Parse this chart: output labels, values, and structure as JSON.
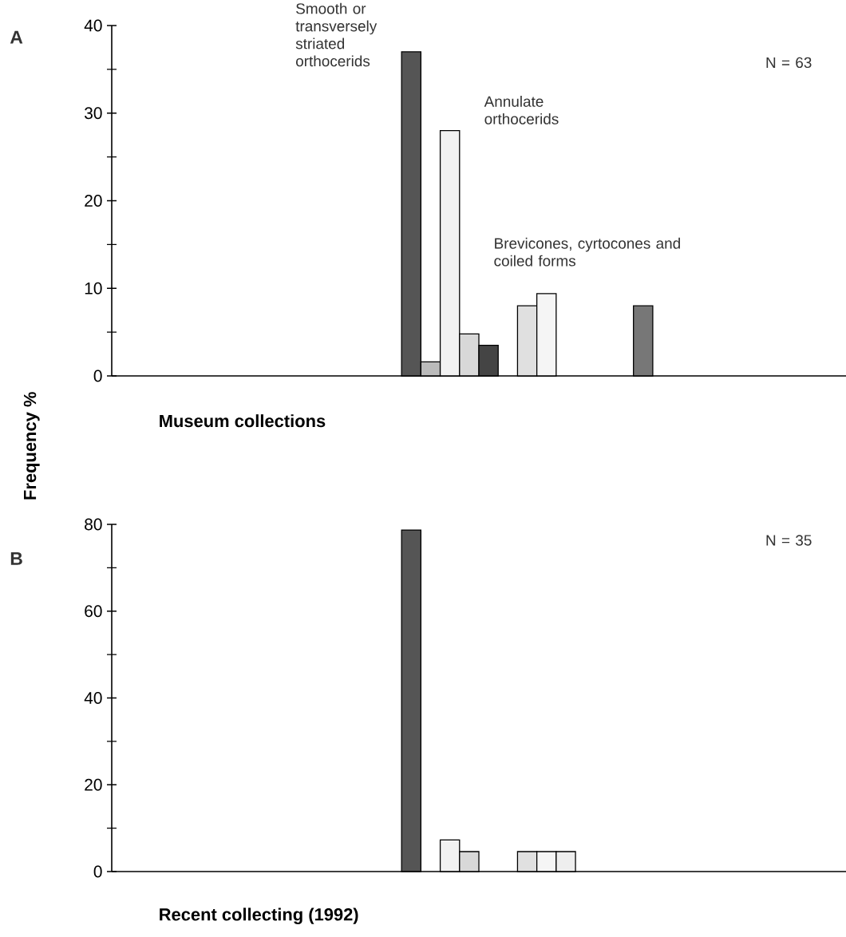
{
  "chart_data": [
    {
      "type": "bar",
      "ylabel": "Frequency %",
      "xlabel": "Museum collections",
      "annotations": [
        "Smooth or transversely striated orthocerids",
        "Annulate orthocerids",
        "Brevicones, cyrtocones and coiled forms",
        "N = 63",
        "A"
      ],
      "categories": [
        null,
        null,
        null,
        null,
        null,
        null,
        null,
        null,
        null,
        null,
        null,
        null,
        null,
        null,
        null,
        null,
        null,
        null,
        null,
        null,
        null,
        null,
        null,
        null,
        null,
        null,
        null,
        null,
        null,
        null,
        null,
        null,
        null,
        null,
        null,
        null,
        null,
        null
      ],
      "values": [
        null,
        null,
        null,
        null,
        null,
        null,
        null,
        null,
        null,
        null,
        null,
        null,
        null,
        null,
        null,
        37,
        1.6,
        28,
        4.8,
        3.5,
        null,
        8,
        9.4,
        null,
        null,
        null,
        null,
        8,
        null,
        null,
        null,
        null,
        null,
        null,
        null,
        null,
        null,
        null
      ],
      "colors": [
        null,
        null,
        null,
        null,
        null,
        null,
        null,
        null,
        null,
        null,
        null,
        null,
        null,
        null,
        null,
        "#555555",
        "#bbbbbb",
        "#f2f2f2",
        "#d8d8d8",
        "#444444",
        null,
        "#e0e0e0",
        "#f5f5f5",
        null,
        null,
        null,
        null,
        "#777777",
        null,
        null,
        null,
        null,
        null,
        null,
        null,
        null,
        null,
        null
      ],
      "ylim": [
        0,
        40
      ],
      "yticks": [
        0,
        {
          "value": 5,
          "label": null
        },
        10,
        {
          "value": 15,
          "label": null
        },
        20,
        {
          "value": 25,
          "label": null
        },
        30,
        {
          "value": 35,
          "label": null
        },
        40
      ],
      "tick_labels": "y"
    },
    {
      "type": "bar",
      "xlabel": "Recent collecting (1992)",
      "annotations": [
        "N = 35",
        "B"
      ],
      "categories": [
        null,
        null,
        null,
        null,
        null,
        null,
        null,
        null,
        null,
        null,
        null,
        null,
        null,
        null,
        null,
        null,
        null,
        null,
        null,
        null,
        null,
        null,
        null,
        null,
        null,
        null,
        null,
        null,
        null,
        null,
        null,
        null,
        null,
        null,
        null,
        null,
        null,
        null
      ],
      "values": [
        null,
        null,
        null,
        null,
        null,
        null,
        null,
        null,
        null,
        null,
        null,
        null,
        null,
        null,
        null,
        78.7,
        null,
        7.3,
        4.6,
        null,
        null,
        4.6,
        4.6,
        4.6,
        null,
        null,
        null,
        null,
        null,
        null,
        null,
        null,
        null,
        null,
        null,
        null,
        null,
        null
      ],
      "colors": [
        null,
        null,
        null,
        null,
        null,
        null,
        null,
        null,
        null,
        null,
        null,
        null,
        null,
        null,
        null,
        "#555555",
        null,
        "#f2f2f2",
        "#d8d8d8",
        null,
        null,
        "#e0e0e0",
        "#f5f5f5",
        "#eeeeee",
        null,
        null,
        null,
        null,
        null,
        null,
        null,
        null,
        null,
        null,
        null,
        null,
        null,
        null
      ],
      "ylim": [
        0,
        80
      ],
      "yticks": [
        0,
        {
          "value": 10,
          "label": null
        },
        20,
        {
          "value": 30,
          "label": null
        },
        40,
        {
          "value": 50,
          "label": null
        },
        60,
        {
          "value": 70,
          "label": null
        },
        80
      ],
      "tick_labels": "y"
    }
  ]
}
